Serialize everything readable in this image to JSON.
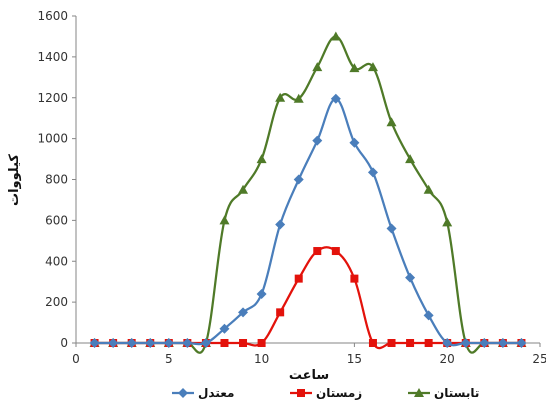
{
  "chart_data": {
    "type": "line",
    "xlabel": "ساعت",
    "ylabel": "کیلووات",
    "xlim": [
      0,
      25
    ],
    "ylim": [
      0,
      1600
    ],
    "xticks": [
      0,
      5,
      10,
      15,
      20,
      25
    ],
    "yticks": [
      0,
      200,
      400,
      600,
      800,
      1000,
      1200,
      1400,
      1600
    ],
    "legend_position": "bottom",
    "grid": false,
    "x": [
      1,
      2,
      3,
      4,
      5,
      6,
      7,
      8,
      9,
      10,
      11,
      12,
      13,
      14,
      15,
      16,
      17,
      18,
      19,
      20,
      21,
      22,
      23,
      24
    ],
    "series": [
      {
        "name": "تابستان",
        "color": "#4f7a28",
        "marker": "triangle",
        "values": [
          0,
          0,
          0,
          0,
          0,
          0,
          0,
          600,
          750,
          900,
          1200,
          1195,
          1350,
          1500,
          1345,
          1350,
          1080,
          900,
          750,
          590,
          0,
          0,
          0,
          0
        ]
      },
      {
        "name": "زمستان",
        "color": "#e3120b",
        "marker": "square",
        "values": [
          0,
          0,
          0,
          0,
          0,
          0,
          0,
          0,
          0,
          0,
          150,
          315,
          450,
          450,
          315,
          0,
          0,
          0,
          0,
          0,
          0,
          0,
          0,
          0
        ]
      },
      {
        "name": "معتدل",
        "color": "#4a7ebb",
        "marker": "diamond",
        "values": [
          0,
          0,
          0,
          0,
          0,
          0,
          0,
          70,
          150,
          240,
          580,
          800,
          990,
          1195,
          980,
          835,
          560,
          320,
          135,
          0,
          0,
          0,
          0,
          0
        ]
      }
    ]
  }
}
